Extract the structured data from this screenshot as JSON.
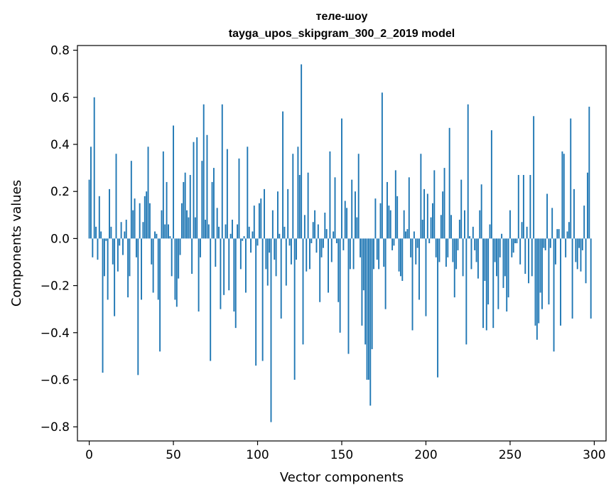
{
  "chart_data": {
    "type": "bar",
    "title": "теле-шоу",
    "subtitle": "tayga_upos_skipgram_300_2_2019 model",
    "xlabel": "Vector components",
    "ylabel": "Components values",
    "xlim": [
      -7,
      307
    ],
    "ylim": [
      -0.86,
      0.82
    ],
    "xticks": [
      0,
      50,
      100,
      150,
      200,
      250,
      300
    ],
    "xtick_labels": [
      "0",
      "50",
      "100",
      "150",
      "200",
      "250",
      "300"
    ],
    "yticks": [
      -0.8,
      -0.6,
      -0.4,
      -0.2,
      0.0,
      0.2,
      0.4,
      0.6,
      0.8
    ],
    "ytick_labels": [
      "−0.8",
      "−0.6",
      "−0.4",
      "−0.2",
      "0.0",
      "0.2",
      "0.4",
      "0.6",
      "0.8"
    ],
    "grid": false,
    "color": "#1f77b4",
    "values": [
      0.25,
      0.39,
      -0.08,
      0.6,
      0.05,
      -0.09,
      0.18,
      0.03,
      -0.57,
      -0.16,
      -0.01,
      -0.26,
      0.21,
      0.05,
      -0.11,
      -0.33,
      0.36,
      -0.14,
      -0.03,
      0.07,
      -0.07,
      0.03,
      0.08,
      -0.25,
      -0.16,
      0.33,
      0.12,
      0.17,
      -0.08,
      -0.58,
      0.15,
      -0.26,
      0.07,
      0.18,
      0.2,
      0.39,
      0.15,
      -0.11,
      -0.23,
      0.03,
      0.02,
      -0.26,
      -0.48,
      0.12,
      0.37,
      0.06,
      0.24,
      0.06,
      0.01,
      -0.16,
      0.48,
      -0.26,
      -0.29,
      -0.17,
      -0.07,
      0.15,
      0.24,
      0.28,
      0.12,
      0.09,
      0.27,
      -0.15,
      0.41,
      0.09,
      0.43,
      -0.31,
      -0.08,
      0.33,
      0.57,
      0.08,
      0.44,
      0.06,
      -0.52,
      0.24,
      0.3,
      -0.12,
      0.13,
      0.05,
      -0.3,
      0.57,
      -0.24,
      0.06,
      0.38,
      -0.22,
      0.02,
      0.08,
      -0.31,
      -0.38,
      0.06,
      0.34,
      -0.13,
      -0.01,
      0.01,
      -0.23,
      0.39,
      0.05,
      -0.06,
      0.03,
      0.14,
      -0.54,
      -0.03,
      0.15,
      0.17,
      -0.52,
      0.21,
      -0.13,
      -0.2,
      -0.06,
      -0.78,
      0.12,
      -0.09,
      -0.16,
      0.2,
      0.02,
      -0.34,
      0.54,
      0.05,
      -0.2,
      0.21,
      -0.03,
      -0.11,
      0.36,
      -0.6,
      -0.09,
      0.39,
      0.27,
      0.74,
      -0.45,
      0.1,
      -0.14,
      0.28,
      -0.13,
      -0.02,
      0.07,
      0.12,
      -0.06,
      0.06,
      -0.27,
      -0.08,
      -0.04,
      0.11,
      0.04,
      -0.23,
      0.37,
      -0.1,
      0.03,
      0.26,
      -0.02,
      -0.27,
      -0.4,
      0.51,
      -0.05,
      0.16,
      0.13,
      -0.49,
      -0.13,
      0.25,
      -0.13,
      0.2,
      0.09,
      0.36,
      -0.08,
      -0.37,
      -0.22,
      -0.45,
      -0.6,
      -0.6,
      -0.71,
      -0.47,
      -0.13,
      0.17,
      -0.09,
      -0.13,
      0.15,
      0.62,
      -0.12,
      -0.3,
      0.24,
      0.14,
      0.12,
      -0.05,
      -0.03,
      0.29,
      0.18,
      -0.14,
      -0.16,
      -0.18,
      0.12,
      0.03,
      0.04,
      0.26,
      -0.08,
      -0.39,
      0.03,
      -0.11,
      -0.04,
      -0.26,
      0.36,
      0.08,
      0.21,
      -0.33,
      0.19,
      -0.02,
      0.09,
      0.15,
      0.29,
      -0.08,
      -0.59,
      -0.1,
      0.1,
      0.2,
      0.3,
      -0.12,
      -0.08,
      0.47,
      0.1,
      -0.1,
      -0.25,
      -0.13,
      -0.05,
      0.08,
      0.25,
      -0.16,
      0.12,
      -0.45,
      0.57,
      0.01,
      -0.13,
      0.05,
      -0.05,
      -0.1,
      -0.17,
      0.12,
      0.23,
      -0.38,
      -0.18,
      -0.39,
      -0.28,
      0.06,
      0.46,
      -0.38,
      -0.1,
      -0.16,
      -0.3,
      -0.08,
      0.02,
      -0.21,
      -0.16,
      -0.31,
      -0.25,
      0.12,
      -0.08,
      -0.06,
      -0.02,
      -0.02,
      0.27,
      -0.11,
      0.07,
      0.27,
      -0.15,
      0.05,
      -0.19,
      0.27,
      -0.16,
      0.52,
      -0.37,
      -0.43,
      -0.36,
      -0.23,
      -0.3,
      -0.04,
      -0.05,
      0.19,
      -0.28,
      -0.04,
      0.13,
      -0.48,
      -0.11,
      0.04,
      0.04,
      -0.37,
      0.37,
      0.36,
      -0.08,
      0.03,
      0.07,
      0.51,
      -0.34,
      0.21,
      -0.1,
      -0.13,
      -0.04,
      -0.14,
      -0.05,
      0.14,
      -0.19,
      0.28,
      0.56,
      -0.34
    ]
  }
}
